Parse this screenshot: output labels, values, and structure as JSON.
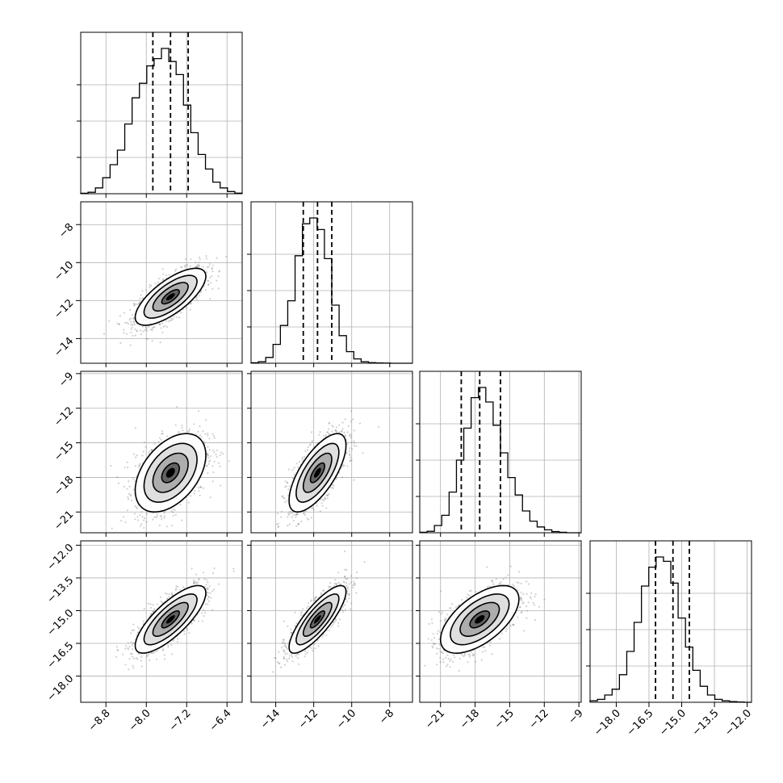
{
  "chart_data": {
    "type": "corner",
    "parameters": [
      {
        "range": [
          -9.3,
          -6.1
        ],
        "ticks": [
          -8.8,
          -8.0,
          -7.2,
          -6.4
        ],
        "tick_labels": [
          "−8.8",
          "−8.0",
          "−7.2",
          "−6.4"
        ],
        "quantiles": [
          -7.87,
          -7.52,
          -7.17
        ],
        "hist": [
          0.003,
          0.01,
          0.04,
          0.11,
          0.2,
          0.3,
          0.48,
          0.66,
          0.76,
          0.88,
          0.93,
          1.0,
          0.91,
          0.82,
          0.61,
          0.42,
          0.27,
          0.17,
          0.08,
          0.04,
          0.015,
          0.004
        ]
      },
      {
        "range": [
          -15.3,
          -6.8
        ],
        "ticks": [
          -14,
          -12,
          -10,
          -8
        ],
        "tick_labels": [
          "−14",
          "−12",
          "−10",
          "−8"
        ],
        "quantiles": [
          -12.55,
          -11.8,
          -11.05
        ],
        "hist": [
          0.003,
          0.01,
          0.04,
          0.13,
          0.26,
          0.43,
          0.74,
          0.96,
          1.0,
          0.92,
          0.72,
          0.4,
          0.19,
          0.08,
          0.03,
          0.01,
          0.004,
          0.002,
          0.001,
          0.0,
          0.0,
          0.0
        ]
      },
      {
        "range": [
          -22.8,
          -8.8
        ],
        "ticks": [
          -21,
          -18,
          -15,
          -12,
          -9
        ],
        "tick_labels": [
          "−21",
          "−18",
          "−15",
          "−12",
          "−9"
        ],
        "quantiles": [
          -19.2,
          -17.6,
          -15.8
        ],
        "hist": [
          0.003,
          0.01,
          0.05,
          0.12,
          0.28,
          0.5,
          0.72,
          0.93,
          1.0,
          0.9,
          0.74,
          0.55,
          0.38,
          0.26,
          0.15,
          0.08,
          0.04,
          0.02,
          0.008,
          0.003,
          0.0,
          0.0
        ]
      },
      {
        "range": [
          -19.2,
          -11.8
        ],
        "ticks": [
          -18.0,
          -16.5,
          -15.0,
          -13.5,
          -12.0
        ],
        "tick_labels": [
          "−18.0",
          "−16.5",
          "−15.0",
          "−13.5",
          "−12.0"
        ],
        "quantiles": [
          -16.2,
          -15.4,
          -14.65
        ],
        "hist": [
          0.01,
          0.02,
          0.05,
          0.09,
          0.19,
          0.35,
          0.55,
          0.8,
          0.93,
          1.0,
          0.97,
          0.82,
          0.58,
          0.38,
          0.22,
          0.11,
          0.05,
          0.02,
          0.01,
          0.005,
          0.002,
          0.0
        ]
      }
    ],
    "pairs": [
      {
        "x": 0,
        "y": 1,
        "rho": 0.72
      },
      {
        "x": 0,
        "y": 2,
        "rho": 0.45
      },
      {
        "x": 1,
        "y": 2,
        "rho": 0.7
      },
      {
        "x": 0,
        "y": 3,
        "rho": 0.78
      },
      {
        "x": 1,
        "y": 3,
        "rho": 0.82
      },
      {
        "x": 2,
        "y": 3,
        "rho": 0.6
      }
    ],
    "grid": true,
    "quantile_line_style": "dashed",
    "contour_levels_sigma": [
      0.5,
      1.0,
      1.5,
      2.0
    ]
  }
}
